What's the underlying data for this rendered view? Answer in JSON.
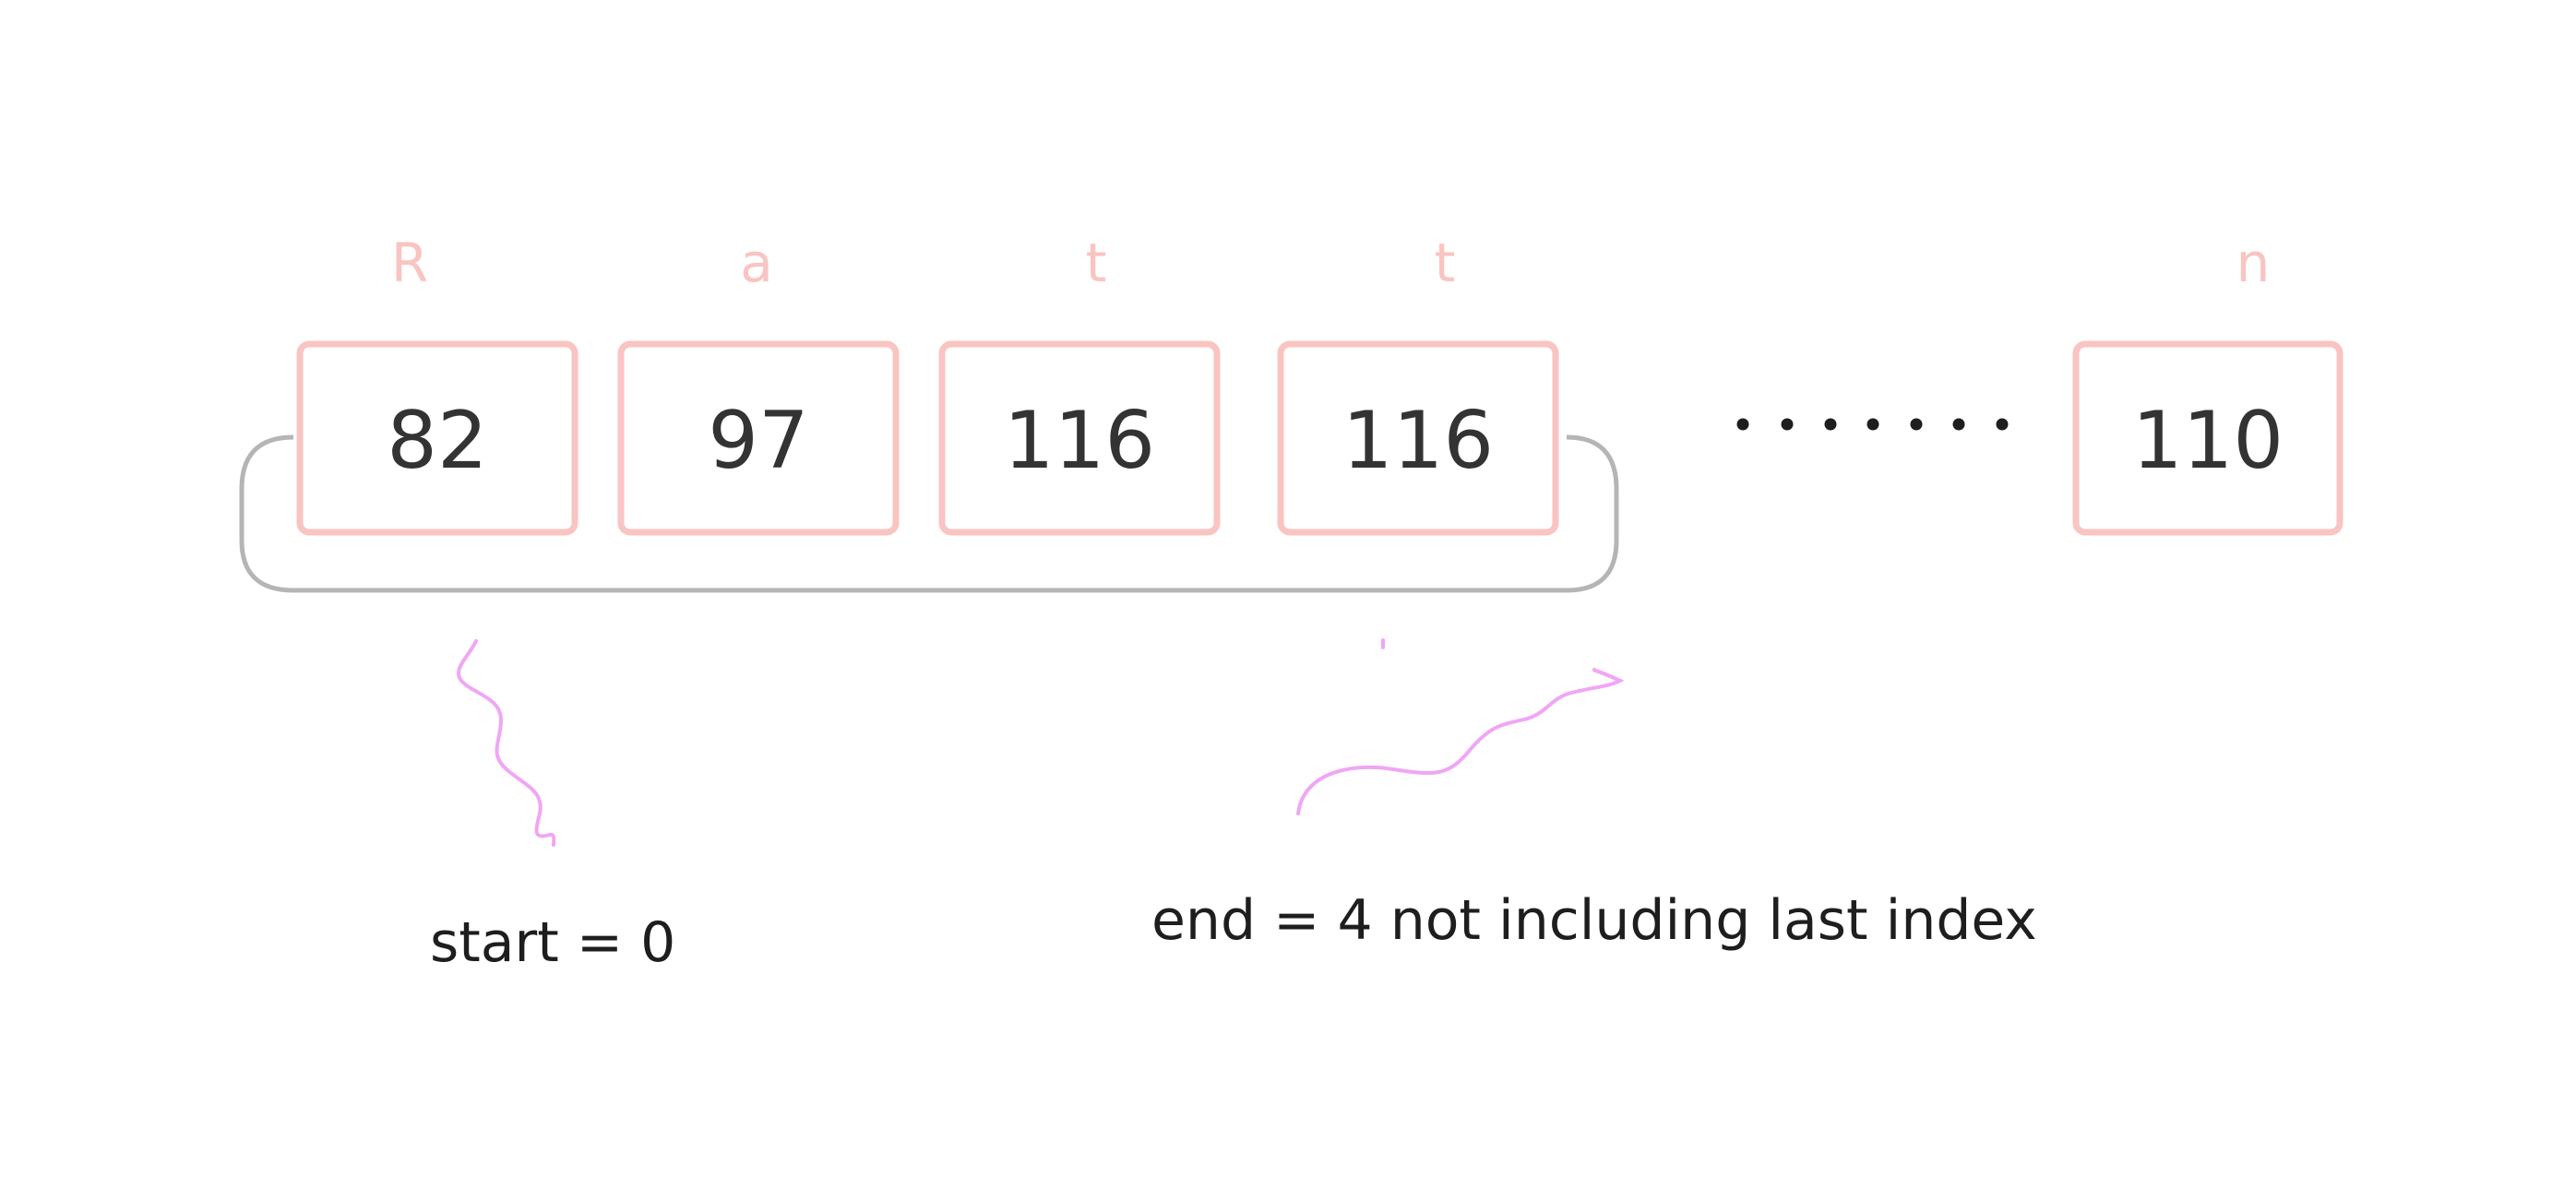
{
  "cells": [
    {
      "char": "R",
      "value": "82"
    },
    {
      "char": "a",
      "value": "97"
    },
    {
      "char": "t",
      "value": "116"
    },
    {
      "char": "t",
      "value": "116"
    },
    {
      "char": "n",
      "value": "110"
    }
  ],
  "annotations": {
    "start": "start = 0",
    "end": "end = 4 not including last index"
  },
  "colors": {
    "cell_border": "#f9c4c1",
    "char_label": "#f9c4c1",
    "value_text": "#333333",
    "bracket": "#b5b5b5",
    "squiggle": "#f0a6f5",
    "text": "#1e1e1e"
  }
}
